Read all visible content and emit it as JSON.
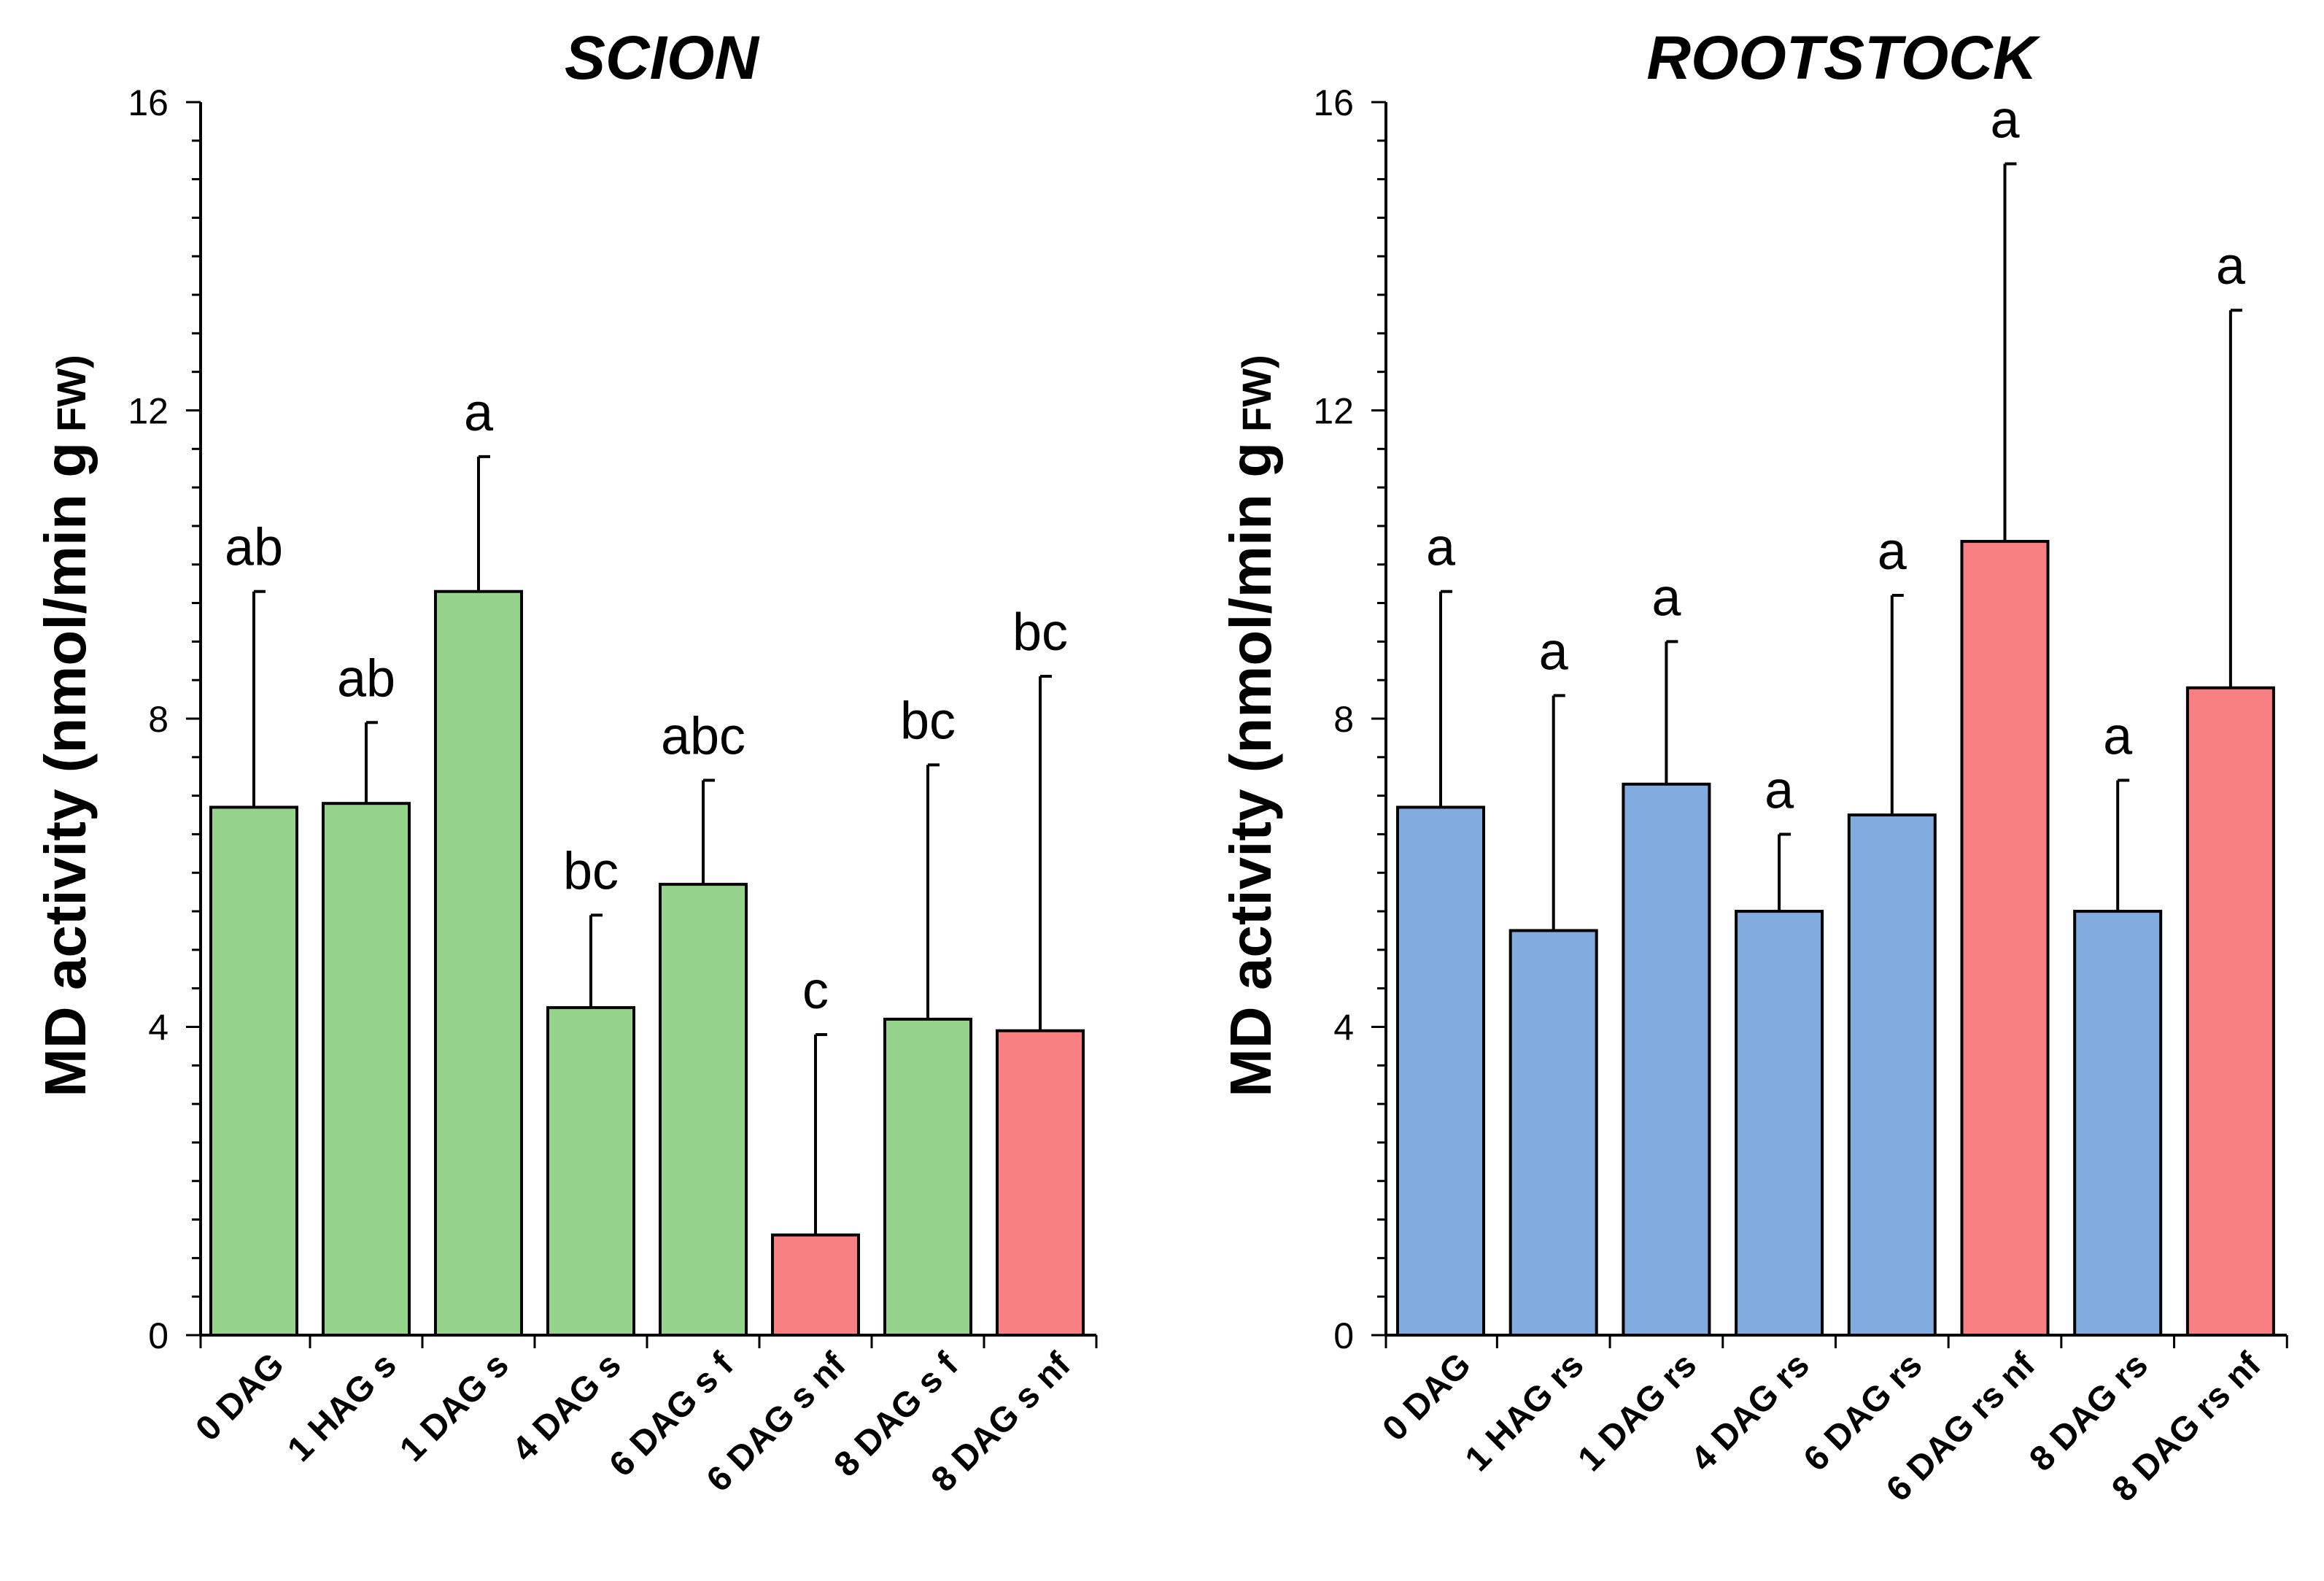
{
  "chart_data": [
    {
      "type": "bar",
      "title": "SCION",
      "ylabel": "MD activity (nmol/min g",
      "ylabel_unit": "FW)",
      "ylim": [
        0,
        16
      ],
      "yticks": [
        "0",
        "4",
        "8",
        "12",
        "16"
      ],
      "categories": [
        "0 DAG",
        "1 HAG s",
        "1 DAG s",
        "4 DAG s",
        "6 DAG s f",
        "6 DAG s nf",
        "8 DAG s f",
        "8 DAG s nf"
      ],
      "values": [
        6.85,
        6.9,
        9.65,
        4.25,
        5.85,
        1.3,
        4.1,
        3.95
      ],
      "errors": [
        2.8,
        1.05,
        1.75,
        1.2,
        1.35,
        2.6,
        3.3,
        4.6
      ],
      "letters": [
        "ab",
        "ab",
        "a",
        "bc",
        "abc",
        "c",
        "bc",
        "bc"
      ],
      "colors": [
        "#95d48a",
        "#95d48a",
        "#95d48a",
        "#95d48a",
        "#95d48a",
        "#f87f82",
        "#95d48a",
        "#f87f82"
      ]
    },
    {
      "type": "bar",
      "title": "ROOTSTOCK",
      "ylabel": "MD activity (nmol/min g",
      "ylabel_unit": "FW)",
      "ylim": [
        0,
        16
      ],
      "yticks": [
        "0",
        "4",
        "8",
        "12",
        "16"
      ],
      "categories": [
        "0 DAG",
        "1 HAG rs",
        "1 DAG rs",
        "4 DAG rs",
        "6 DAG rs",
        "6 DAG rs nf",
        "8 DAG rs",
        "8 DAG rs nf"
      ],
      "values": [
        6.85,
        5.25,
        7.15,
        5.5,
        6.75,
        10.3,
        5.5,
        8.4
      ],
      "errors": [
        2.8,
        3.05,
        1.85,
        1.0,
        2.85,
        4.9,
        1.7,
        4.9
      ],
      "letters": [
        "a",
        "a",
        "a",
        "a",
        "a",
        "a",
        "a",
        "a"
      ],
      "colors": [
        "#82abdf",
        "#82abdf",
        "#82abdf",
        "#82abdf",
        "#82abdf",
        "#f87f82",
        "#82abdf",
        "#f87f82"
      ]
    }
  ]
}
